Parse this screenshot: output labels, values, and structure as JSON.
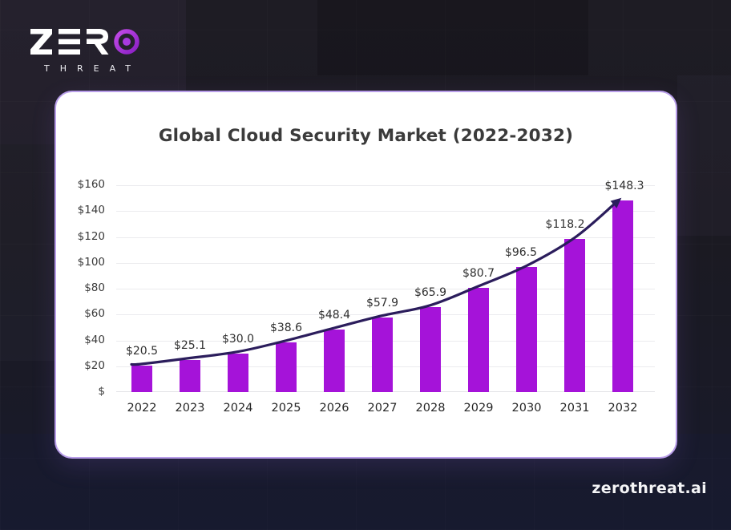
{
  "logo": {
    "brand": "ZERO",
    "subtext": "THREAT",
    "o_icon": "target-icon",
    "accent_color": "#A12BD8"
  },
  "card": {
    "background": "#FFFFFF",
    "border_color": "#B89DE9"
  },
  "page": {
    "background_top": "#1E1C24",
    "background_bottom": "#181A2B"
  },
  "footer": {
    "site": "zerothreat.ai"
  },
  "chart_data": {
    "type": "bar",
    "title": "Global Cloud Security Market (2022-2032)",
    "categories": [
      "2022",
      "2023",
      "2024",
      "2025",
      "2026",
      "2027",
      "2028",
      "2029",
      "2030",
      "2031",
      "2032"
    ],
    "values": [
      20.5,
      25.1,
      30.0,
      38.6,
      48.4,
      57.9,
      65.9,
      80.7,
      96.5,
      118.2,
      148.3
    ],
    "value_labels": [
      "$20.5",
      "$25.1",
      "$30.0",
      "$38.6",
      "$48.4",
      "$57.9",
      "$65.9",
      "$80.7",
      "$96.5",
      "$118.2",
      "$148.3"
    ],
    "y_ticks": [
      "$160",
      "$140",
      "$120",
      "$100",
      "$80",
      "$60",
      "$40",
      "$20",
      "$"
    ],
    "ylim": [
      0,
      160
    ],
    "xlabel": "",
    "ylabel": "",
    "grid": true,
    "legend": null,
    "bar_color": "#A513D9",
    "trend_line": {
      "style": "smooth",
      "arrow_end": true,
      "color": "#2B1D5C"
    }
  }
}
